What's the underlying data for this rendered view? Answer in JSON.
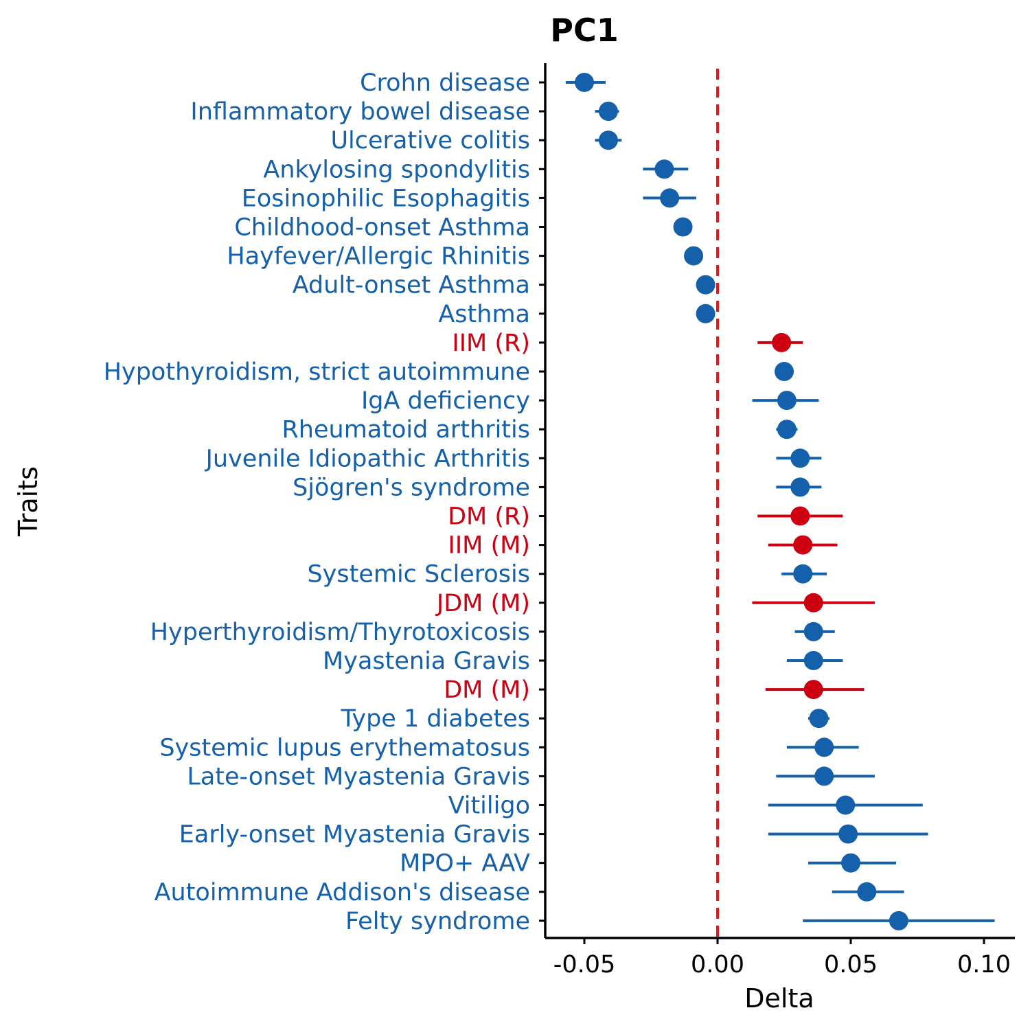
{
  "chart_data": {
    "type": "forest",
    "title": "PC1",
    "xlabel": "Delta",
    "ylabel": "Traits",
    "xlim": [
      -0.0655,
      0.112
    ],
    "xticks": [
      -0.05,
      0.0,
      0.05,
      0.1
    ],
    "xtick_labels": [
      "-0.05",
      "0.00",
      "0.05",
      "0.10"
    ],
    "reference_line": {
      "x": 0,
      "color": "#e8161c",
      "style": "dashed"
    },
    "grid": false,
    "colors": {
      "myositis": "#cc0011",
      "other": "#1560aa",
      "axis": "#000000"
    },
    "traits": [
      {
        "name": "Crohn disease",
        "delta": -0.05,
        "lo": -0.057,
        "hi": -0.042,
        "group": "other"
      },
      {
        "name": "Inflammatory bowel disease",
        "delta": -0.041,
        "lo": -0.046,
        "hi": -0.037,
        "group": "other"
      },
      {
        "name": "Ulcerative colitis",
        "delta": -0.041,
        "lo": -0.046,
        "hi": -0.036,
        "group": "other"
      },
      {
        "name": "Ankylosing spondylitis",
        "delta": -0.02,
        "lo": -0.028,
        "hi": -0.011,
        "group": "other"
      },
      {
        "name": "Eosinophilic Esophagitis",
        "delta": -0.018,
        "lo": -0.028,
        "hi": -0.008,
        "group": "other"
      },
      {
        "name": "Childhood-onset Asthma",
        "delta": -0.013,
        "lo": -0.015,
        "hi": -0.011,
        "group": "other"
      },
      {
        "name": "Hayfever/Allergic Rhinitis",
        "delta": -0.009,
        "lo": -0.01,
        "hi": -0.008,
        "group": "other"
      },
      {
        "name": "Adult-onset Asthma",
        "delta": -0.0045,
        "lo": -0.006,
        "hi": -0.003,
        "group": "other"
      },
      {
        "name": "Asthma",
        "delta": -0.0045,
        "lo": -0.0055,
        "hi": -0.0035,
        "group": "other"
      },
      {
        "name": "IIM (R)",
        "delta": 0.024,
        "lo": 0.015,
        "hi": 0.032,
        "group": "myositis"
      },
      {
        "name": "Hypothyroidism, strict autoimmune",
        "delta": 0.025,
        "lo": 0.024,
        "hi": 0.026,
        "group": "other"
      },
      {
        "name": "IgA deficiency",
        "delta": 0.026,
        "lo": 0.013,
        "hi": 0.038,
        "group": "other"
      },
      {
        "name": "Rheumatoid arthritis",
        "delta": 0.026,
        "lo": 0.022,
        "hi": 0.03,
        "group": "other"
      },
      {
        "name": "Juvenile Idiopathic Arthritis",
        "delta": 0.031,
        "lo": 0.022,
        "hi": 0.039,
        "group": "other"
      },
      {
        "name": "Sjögren's syndrome",
        "delta": 0.031,
        "lo": 0.022,
        "hi": 0.039,
        "group": "other"
      },
      {
        "name": "DM (R)",
        "delta": 0.031,
        "lo": 0.015,
        "hi": 0.047,
        "group": "myositis"
      },
      {
        "name": "IIM (M)",
        "delta": 0.032,
        "lo": 0.019,
        "hi": 0.045,
        "group": "myositis"
      },
      {
        "name": "Systemic Sclerosis",
        "delta": 0.032,
        "lo": 0.024,
        "hi": 0.041,
        "group": "other"
      },
      {
        "name": "JDM (M)",
        "delta": 0.036,
        "lo": 0.013,
        "hi": 0.059,
        "group": "myositis"
      },
      {
        "name": "Hyperthyroidism/Thyrotoxicosis",
        "delta": 0.036,
        "lo": 0.029,
        "hi": 0.044,
        "group": "other"
      },
      {
        "name": "Myastenia Gravis",
        "delta": 0.036,
        "lo": 0.026,
        "hi": 0.047,
        "group": "other"
      },
      {
        "name": "DM (M)",
        "delta": 0.036,
        "lo": 0.018,
        "hi": 0.055,
        "group": "myositis"
      },
      {
        "name": "Type 1 diabetes",
        "delta": 0.038,
        "lo": 0.034,
        "hi": 0.042,
        "group": "other"
      },
      {
        "name": "Systemic lupus erythematosus",
        "delta": 0.04,
        "lo": 0.026,
        "hi": 0.053,
        "group": "other"
      },
      {
        "name": "Late-onset Myastenia Gravis",
        "delta": 0.04,
        "lo": 0.022,
        "hi": 0.059,
        "group": "other"
      },
      {
        "name": "Vitiligo",
        "delta": 0.048,
        "lo": 0.019,
        "hi": 0.077,
        "group": "other"
      },
      {
        "name": "Early-onset Myastenia Gravis",
        "delta": 0.049,
        "lo": 0.019,
        "hi": 0.079,
        "group": "other"
      },
      {
        "name": "MPO+ AAV",
        "delta": 0.05,
        "lo": 0.034,
        "hi": 0.067,
        "group": "other"
      },
      {
        "name": "Autoimmune Addison's disease",
        "delta": 0.056,
        "lo": 0.043,
        "hi": 0.07,
        "group": "other"
      },
      {
        "name": "Felty syndrome",
        "delta": 0.068,
        "lo": 0.032,
        "hi": 0.104,
        "group": "other"
      }
    ]
  }
}
